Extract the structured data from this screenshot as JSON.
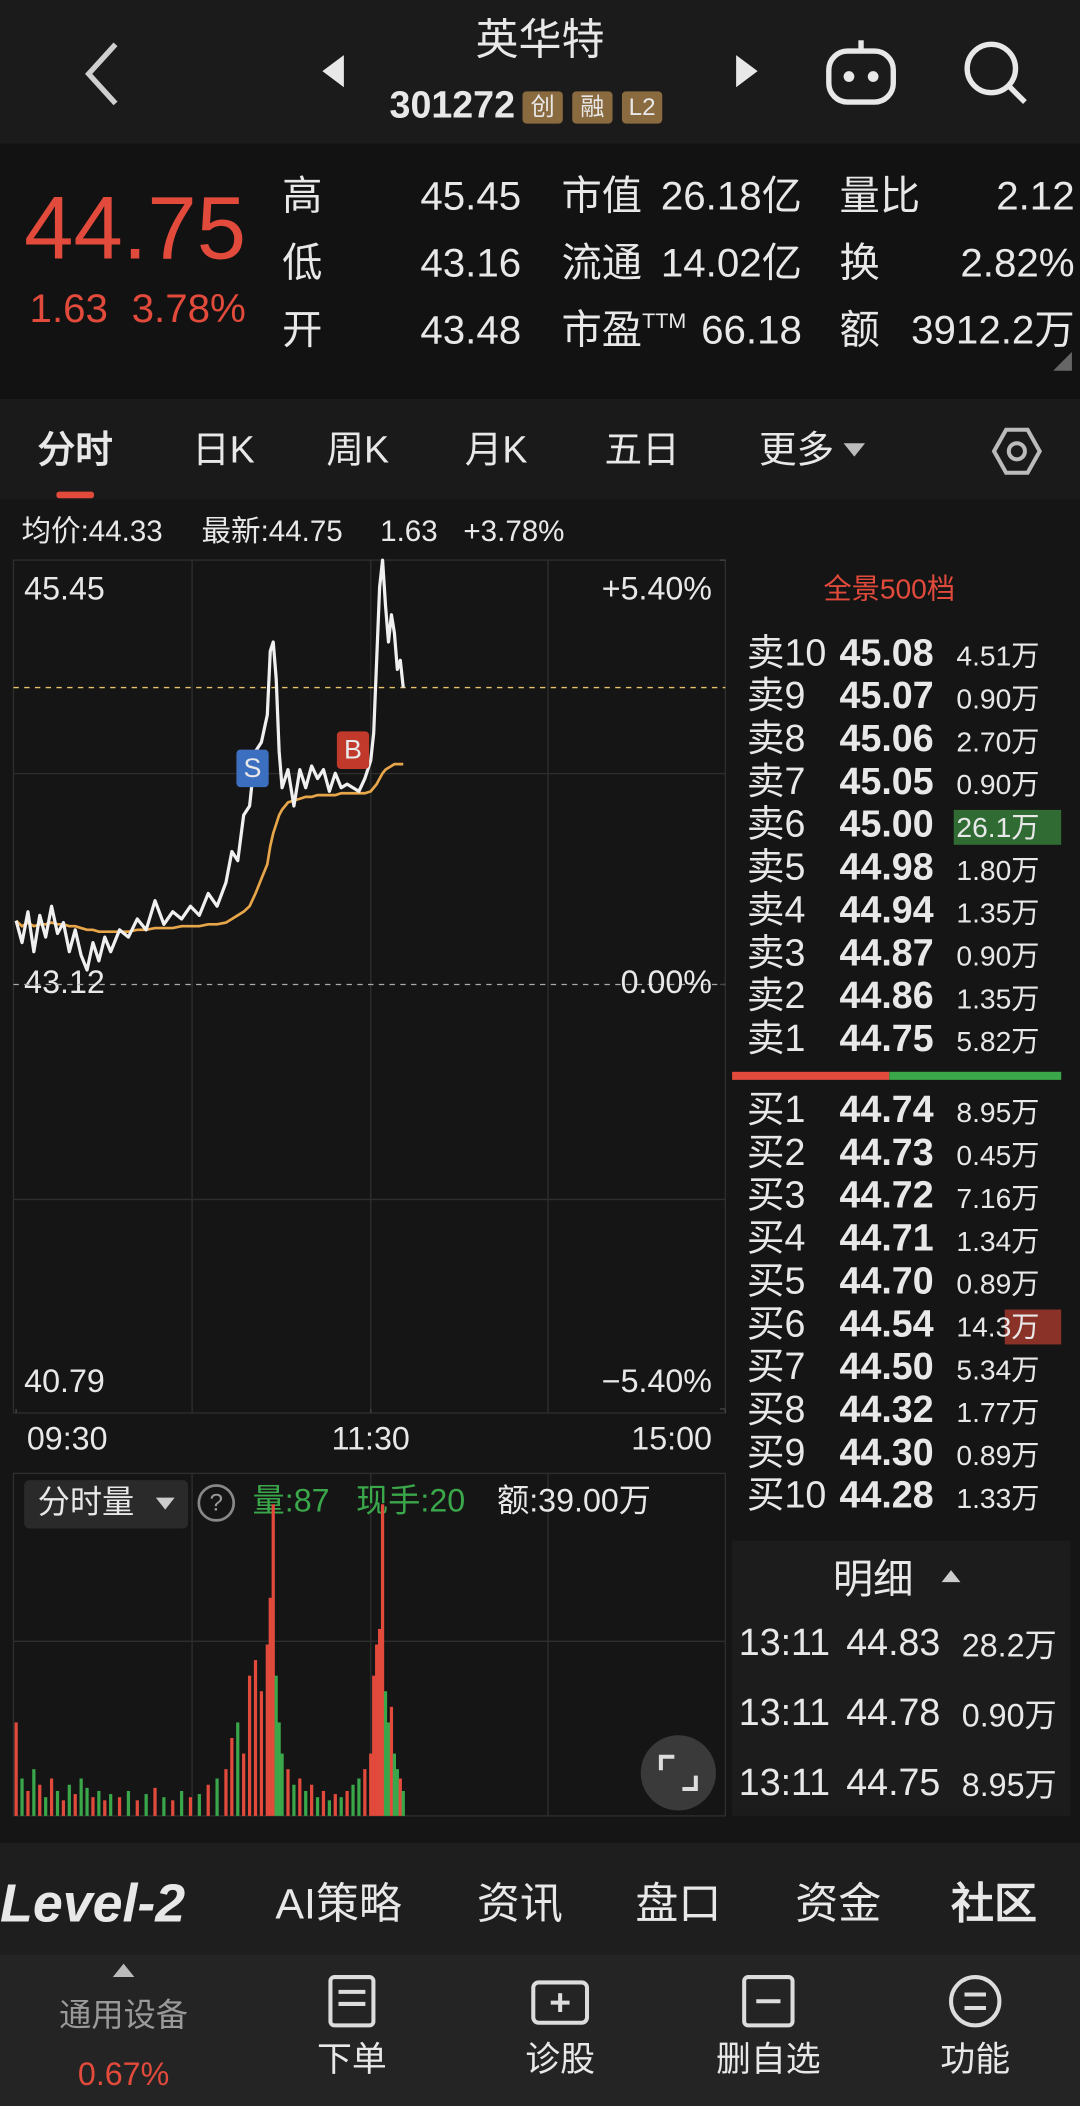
{
  "header": {
    "title": "英华特",
    "code": "301272",
    "badges": [
      "创",
      "融",
      "L2"
    ]
  },
  "quote": {
    "price": "44.75",
    "change": "1.63",
    "change_pct": "3.78%",
    "stats": [
      {
        "label": "高",
        "value": "45.45"
      },
      {
        "label": "低",
        "value": "43.16"
      },
      {
        "label": "开",
        "value": "43.48"
      },
      {
        "label": "市值",
        "value": "26.18亿"
      },
      {
        "label": "流通",
        "value": "14.02亿"
      },
      {
        "label": "市盈",
        "sup": "TTM",
        "value": "66.18"
      },
      {
        "label": "量比",
        "value": "2.12"
      },
      {
        "label": "换",
        "value": "2.82%"
      },
      {
        "label": "额",
        "value": "3912.2万"
      }
    ]
  },
  "tabs": [
    "分时",
    "日K",
    "周K",
    "月K",
    "五日",
    "更多"
  ],
  "summary": {
    "avg": "均价:44.33",
    "latest": "最新:44.75",
    "change": "1.63",
    "change_pct": "+3.78%"
  },
  "intraday": {
    "xlim": [
      0,
      240
    ],
    "xticks": [
      {
        "value": 0,
        "label": "09:30"
      },
      {
        "value": 120,
        "label": "11:30"
      },
      {
        "value": 240,
        "label": "15:00"
      }
    ],
    "ylim": [
      40.79,
      45.45
    ],
    "yticks": [
      45.45,
      43.12,
      40.79
    ],
    "y2lim": [
      -5.4,
      5.4
    ],
    "y2ticks": [
      {
        "value": 5.4,
        "label": "+5.40%"
      },
      {
        "value": 0,
        "label": "0.00%"
      },
      {
        "value": -5.4,
        "label": "−5.40%"
      }
    ],
    "x": [
      0,
      2,
      4,
      6,
      8,
      10,
      12,
      14,
      16,
      18,
      20,
      22,
      24,
      26,
      28,
      30,
      32,
      35,
      38,
      41,
      44,
      47,
      50,
      53,
      56,
      59,
      62,
      65,
      68,
      71,
      73,
      75,
      77,
      79,
      81,
      83,
      85,
      86,
      87,
      88,
      89,
      90,
      92,
      94,
      96,
      98,
      100,
      102,
      104,
      106,
      108,
      110,
      112,
      114,
      116,
      118,
      120,
      121,
      122,
      123,
      124,
      125,
      126,
      127,
      128,
      129,
      130,
      131
    ],
    "price": [
      43.47,
      43.35,
      43.52,
      43.3,
      43.5,
      43.38,
      43.55,
      43.4,
      43.46,
      43.3,
      43.42,
      43.28,
      43.2,
      43.35,
      43.25,
      43.38,
      43.3,
      43.42,
      43.38,
      43.48,
      43.42,
      43.58,
      43.45,
      43.52,
      43.48,
      43.55,
      43.5,
      43.62,
      43.55,
      43.68,
      43.85,
      43.8,
      44.05,
      44.1,
      44.4,
      44.45,
      44.6,
      44.95,
      45.0,
      44.8,
      44.4,
      44.2,
      44.3,
      44.1,
      44.3,
      44.2,
      44.32,
      44.25,
      44.3,
      44.18,
      44.28,
      44.2,
      44.22,
      44.2,
      44.18,
      44.25,
      44.35,
      44.5,
      44.9,
      45.3,
      45.45,
      45.2,
      45.0,
      45.15,
      45.05,
      44.85,
      44.9,
      44.75
    ],
    "price_color": "#f0f0f0",
    "avg": [
      43.47,
      43.44,
      43.46,
      43.44,
      43.45,
      43.45,
      43.46,
      43.45,
      43.45,
      43.44,
      43.44,
      43.43,
      43.42,
      43.42,
      43.41,
      43.41,
      43.41,
      43.41,
      43.41,
      43.42,
      43.42,
      43.43,
      43.43,
      43.43,
      43.44,
      43.44,
      43.44,
      43.45,
      43.45,
      43.46,
      43.48,
      43.5,
      43.52,
      43.55,
      43.62,
      43.7,
      43.78,
      43.88,
      43.95,
      44.0,
      44.05,
      44.08,
      44.12,
      44.13,
      44.14,
      44.15,
      44.15,
      44.16,
      44.16,
      44.16,
      44.16,
      44.17,
      44.17,
      44.17,
      44.17,
      44.17,
      44.18,
      44.2,
      44.22,
      44.25,
      44.28,
      44.3,
      44.31,
      44.32,
      44.33,
      44.33,
      44.33,
      44.33
    ],
    "avg_color": "#e8a64a",
    "volume": [
      30,
      12,
      8,
      15,
      10,
      6,
      12,
      8,
      5,
      10,
      7,
      12,
      9,
      6,
      8,
      5,
      7,
      6,
      8,
      5,
      7,
      9,
      6,
      5,
      8,
      6,
      7,
      10,
      12,
      15,
      25,
      30,
      20,
      45,
      50,
      40,
      55,
      70,
      100,
      45,
      30,
      20,
      15,
      10,
      12,
      8,
      10,
      6,
      8,
      5,
      7,
      6,
      8,
      10,
      12,
      15,
      20,
      45,
      55,
      60,
      100,
      40,
      30,
      35,
      20,
      15,
      12,
      8
    ],
    "volume_ylim": [
      0,
      100
    ],
    "up_color": "#e24a3c",
    "down_color": "#3aa74a",
    "markers": [
      {
        "label": "S",
        "x": 80,
        "color": "#3c6fbf"
      },
      {
        "label": "B",
        "x": 114,
        "color": "#c0392b"
      }
    ]
  },
  "volume_panel": {
    "selector": "分时量",
    "help": "?",
    "vol": "量:87",
    "hand": "现手:20",
    "amount": "额:39.00万"
  },
  "orderbook": {
    "title": "全景500档",
    "asks": [
      {
        "label": "卖10",
        "price": "45.08",
        "vol": "4.51万"
      },
      {
        "label": "卖9",
        "price": "45.07",
        "vol": "0.90万"
      },
      {
        "label": "卖8",
        "price": "45.06",
        "vol": "2.70万"
      },
      {
        "label": "卖7",
        "price": "45.05",
        "vol": "0.90万"
      },
      {
        "label": "卖6",
        "price": "45.00",
        "vol": "26.1万"
      },
      {
        "label": "卖5",
        "price": "44.98",
        "vol": "1.80万"
      },
      {
        "label": "卖4",
        "price": "44.94",
        "vol": "1.35万"
      },
      {
        "label": "卖3",
        "price": "44.87",
        "vol": "0.90万"
      },
      {
        "label": "卖2",
        "price": "44.86",
        "vol": "1.35万"
      },
      {
        "label": "卖1",
        "price": "44.75",
        "vol": "5.82万"
      }
    ],
    "bids": [
      {
        "label": "买1",
        "price": "44.74",
        "vol": "8.95万"
      },
      {
        "label": "买2",
        "price": "44.73",
        "vol": "0.45万"
      },
      {
        "label": "买3",
        "price": "44.72",
        "vol": "7.16万"
      },
      {
        "label": "买4",
        "price": "44.71",
        "vol": "1.34万"
      },
      {
        "label": "买5",
        "price": "44.70",
        "vol": "0.89万"
      },
      {
        "label": "买6",
        "price": "44.54",
        "vol": "14.3万"
      },
      {
        "label": "买7",
        "price": "44.50",
        "vol": "5.34万"
      },
      {
        "label": "买8",
        "price": "44.32",
        "vol": "1.77万"
      },
      {
        "label": "买9",
        "price": "44.30",
        "vol": "0.89万"
      },
      {
        "label": "买10",
        "price": "44.28",
        "vol": "1.33万"
      }
    ]
  },
  "trades": {
    "title": "明细",
    "rows": [
      {
        "time": "13:11",
        "price": "44.83",
        "vol": "28.2万",
        "color": "#3aa74a"
      },
      {
        "time": "13:11",
        "price": "44.78",
        "vol": "0.90万",
        "color": "#e24a3c"
      },
      {
        "time": "13:11",
        "price": "44.75",
        "vol": "8.95万",
        "color": "#3aa74a"
      }
    ]
  },
  "bottom_tabs": [
    "Level-2",
    "AI策略",
    "资讯",
    "盘口",
    "资金",
    "社区"
  ],
  "footer": {
    "sector": "通用设备",
    "sector_change": "0.67%",
    "actions": [
      "下单",
      "诊股",
      "删自选",
      "功能"
    ]
  }
}
